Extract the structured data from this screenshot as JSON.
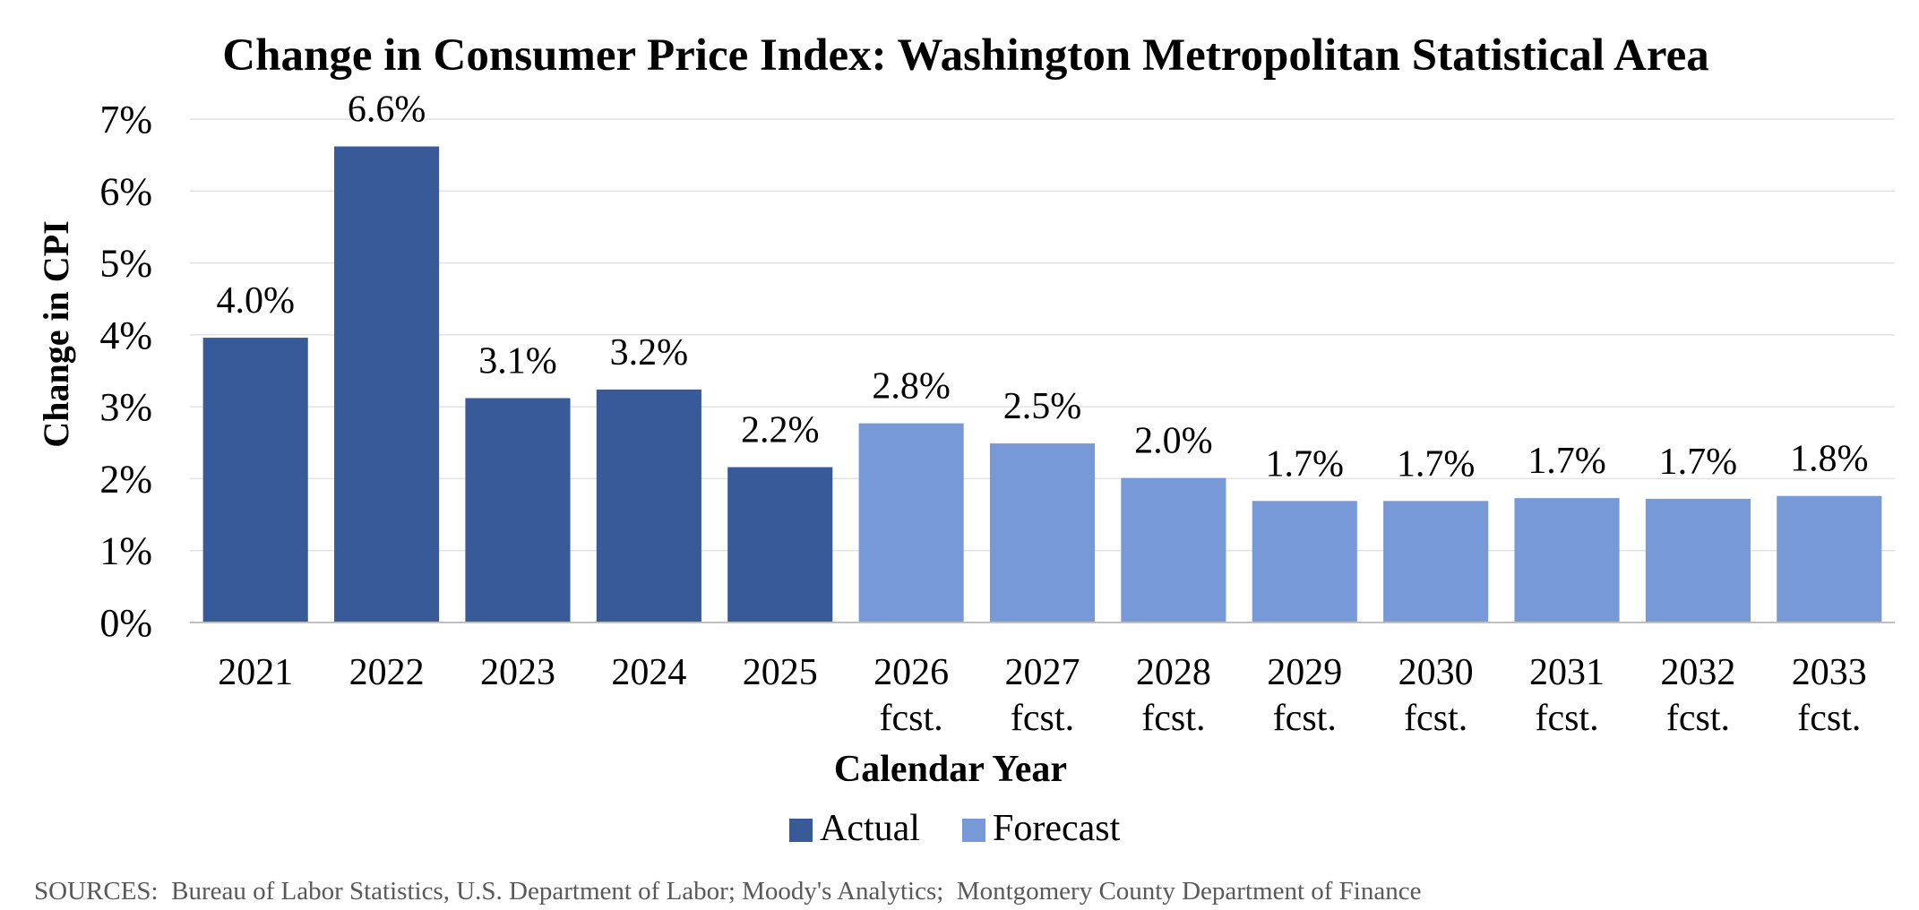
{
  "chart_data": {
    "type": "bar",
    "title": "Change in Consumer Price Index: Washington Metropolitan Statistical Area",
    "xlabel": "Calendar Year",
    "ylabel": "Change in CPI",
    "ylim": [
      0,
      7
    ],
    "yticks": [
      "0%",
      "1%",
      "2%",
      "3%",
      "4%",
      "5%",
      "6%",
      "7%"
    ],
    "grid": true,
    "categories": [
      {
        "line1": "2021",
        "line2": ""
      },
      {
        "line1": "2022",
        "line2": ""
      },
      {
        "line1": "2023",
        "line2": ""
      },
      {
        "line1": "2024",
        "line2": ""
      },
      {
        "line1": "2025",
        "line2": ""
      },
      {
        "line1": "2026",
        "line2": "fcst."
      },
      {
        "line1": "2027",
        "line2": "fcst."
      },
      {
        "line1": "2028",
        "line2": "fcst."
      },
      {
        "line1": "2029",
        "line2": "fcst."
      },
      {
        "line1": "2030",
        "line2": "fcst."
      },
      {
        "line1": "2031",
        "line2": "fcst."
      },
      {
        "line1": "2032",
        "line2": "fcst."
      },
      {
        "line1": "2033",
        "line2": "fcst."
      }
    ],
    "values": [
      3.96,
      6.62,
      3.12,
      3.24,
      2.16,
      2.77,
      2.49,
      2.01,
      1.69,
      1.69,
      1.73,
      1.72,
      1.76
    ],
    "labels": [
      "4.0%",
      "6.6%",
      "3.1%",
      "3.2%",
      "2.2%",
      "2.8%",
      "2.5%",
      "2.0%",
      "1.7%",
      "1.7%",
      "1.7%",
      "1.7%",
      "1.8%"
    ],
    "series_index": [
      0,
      0,
      0,
      0,
      0,
      1,
      1,
      1,
      1,
      1,
      1,
      1,
      1
    ],
    "series": [
      {
        "name": "Actual",
        "color": "#385A98"
      },
      {
        "name": "Forecast",
        "color": "#7799D7"
      }
    ],
    "legend_position": "bottom-center",
    "source_note": "SOURCES:  Bureau of Labor Statistics, U.S. Department of Labor; Moody's Analytics;  Montgomery County Department of Finance"
  }
}
